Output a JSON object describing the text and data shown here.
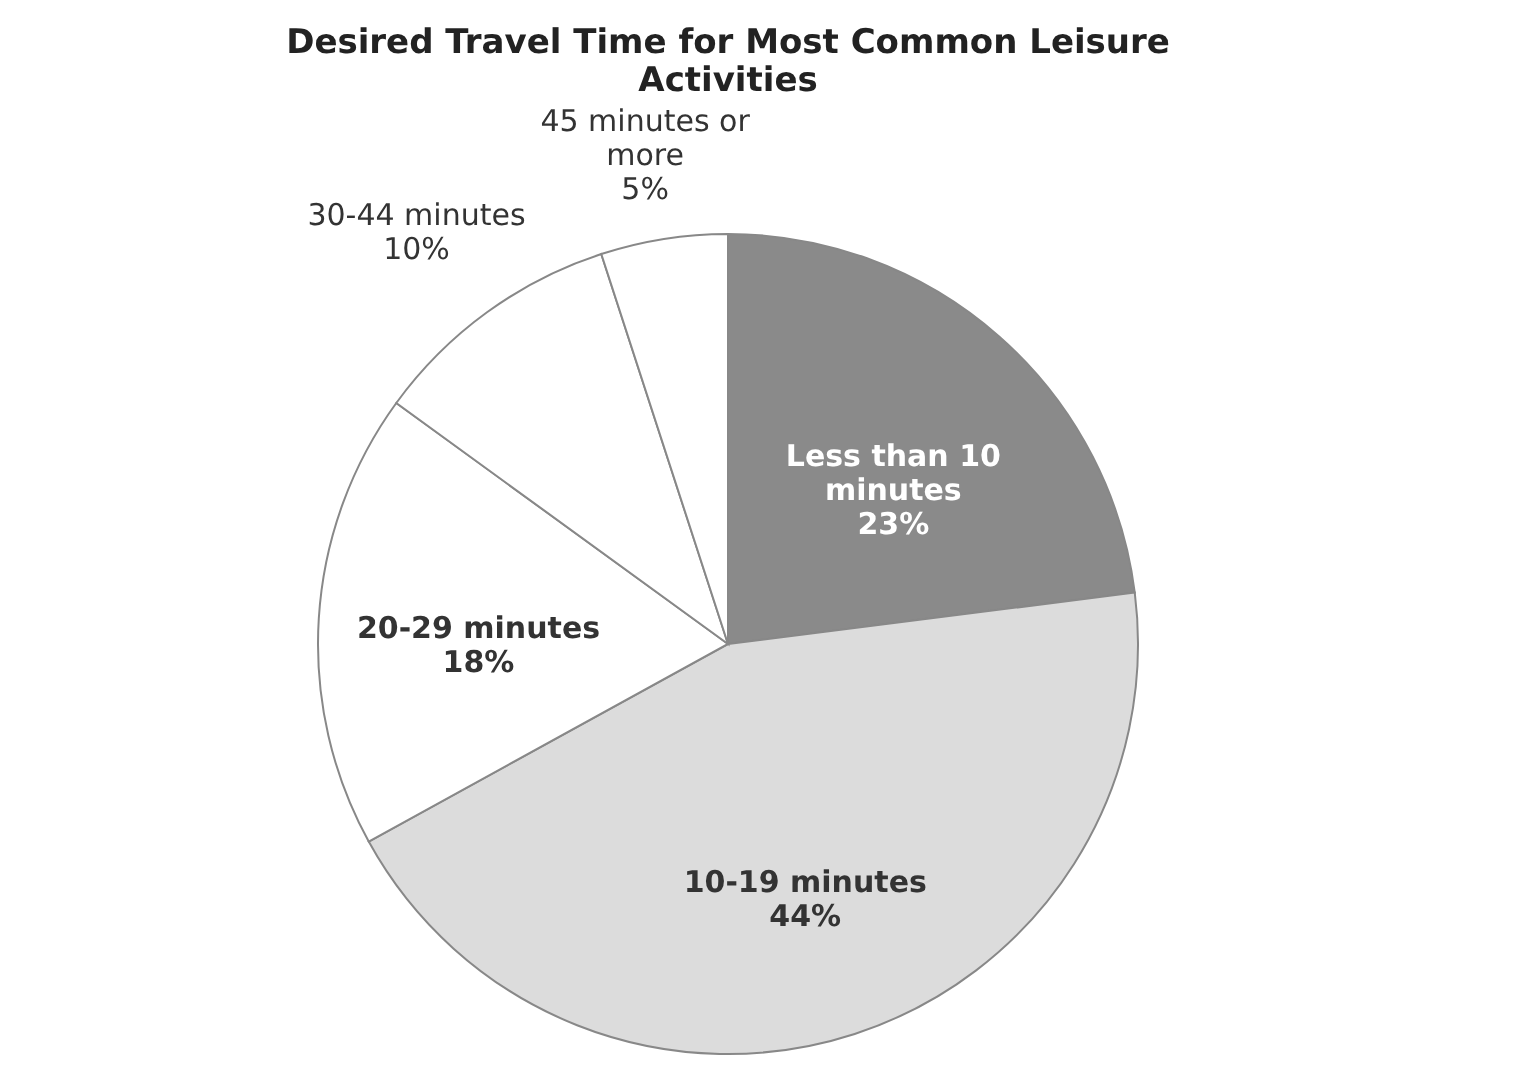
{
  "chart_data": {
    "type": "pie",
    "title": "Desired Travel Time for Most Common Leisure Activities",
    "categories": [
      "Less than 10 minutes",
      "10-19 minutes",
      "20-29 minutes",
      "30-44 minutes",
      "45 minutes or more"
    ],
    "values": [
      23,
      44,
      18,
      10,
      5
    ],
    "colors": [
      "#8a8a8a",
      "#dcdcdc",
      "#ffffff",
      "#ffffff",
      "#ffffff"
    ],
    "value_labels": [
      "23%",
      "44%",
      "18%",
      "10%",
      "5%"
    ],
    "legend": false
  }
}
